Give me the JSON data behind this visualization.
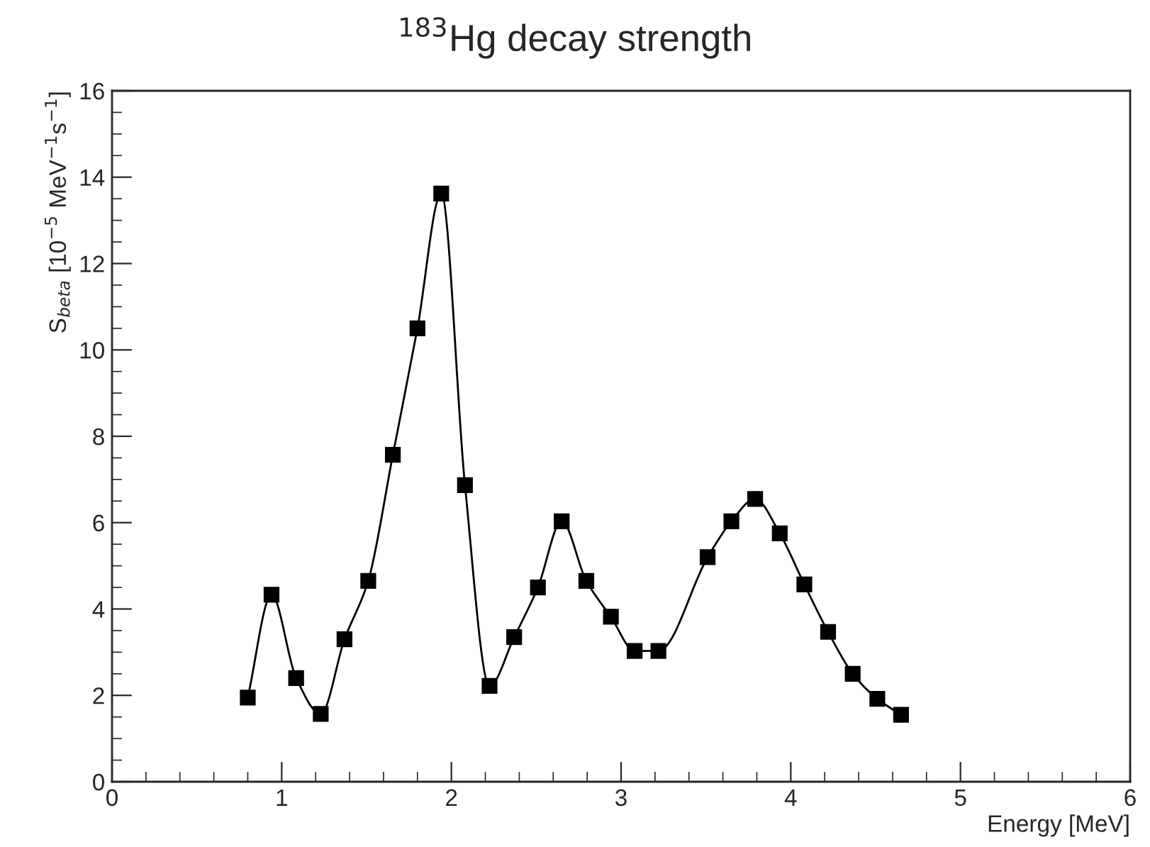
{
  "chart_data": {
    "type": "line",
    "title": "$^{183}$Hg decay strength",
    "xlabel": "Energy [MeV]",
    "ylabel": "S$_{beta}$ [10$^{−5}$ MeV$^{−1}$s$^{−1}$]",
    "series": [
      {
        "color": "#000000",
        "x": [
          0.8,
          0.94,
          1.085,
          1.23,
          1.37,
          1.51,
          1.655,
          1.8,
          1.94,
          2.08,
          2.225,
          2.37,
          2.51,
          2.65,
          2.795,
          2.94,
          3.08,
          3.22,
          3.51,
          3.65,
          3.79,
          3.935,
          4.08,
          4.22,
          4.365,
          4.51,
          4.65
        ],
        "values": [
          1.95,
          4.33,
          2.4,
          1.57,
          3.3,
          4.65,
          7.57,
          10.5,
          13.62,
          6.87,
          2.22,
          3.35,
          4.5,
          6.03,
          4.65,
          3.82,
          3.03,
          3.03,
          5.2,
          6.03,
          6.55,
          5.75,
          4.57,
          3.47,
          2.5,
          1.92,
          1.55
        ]
      }
    ],
    "xlim": [
      0,
      6
    ],
    "xticks": [
      0,
      1,
      2,
      3,
      4,
      5,
      6
    ],
    "ylim": [
      0,
      16
    ],
    "yticks": [
      0,
      2,
      4,
      6,
      8,
      10,
      12,
      14,
      16
    ],
    "grid": false,
    "legend": false,
    "marker": "square",
    "line_style": "solid"
  }
}
